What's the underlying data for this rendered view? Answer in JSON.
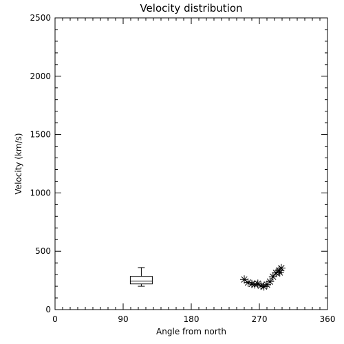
{
  "chart_data": {
    "type": "scatter",
    "title": "Velocity distribution",
    "xlabel": "Angle from north",
    "ylabel": "Velocity (km/s)",
    "xlim": [
      0,
      360
    ],
    "ylim": [
      0,
      2500
    ],
    "x_ticks": [
      0,
      90,
      180,
      270,
      360
    ],
    "y_ticks": [
      0,
      500,
      1000,
      1500,
      2000,
      2500
    ],
    "x_minor_step": 10,
    "y_minor_step": 100,
    "grid": false,
    "box": {
      "x": 114,
      "whisker_low": 200,
      "q1": 220,
      "median": 245,
      "q3": 285,
      "whisker_high": 360
    },
    "points": [
      {
        "x": 250,
        "y": 258
      },
      {
        "x": 255,
        "y": 232
      },
      {
        "x": 260,
        "y": 220
      },
      {
        "x": 264,
        "y": 216
      },
      {
        "x": 268,
        "y": 222
      },
      {
        "x": 272,
        "y": 205
      },
      {
        "x": 276,
        "y": 198
      },
      {
        "x": 280,
        "y": 214
      },
      {
        "x": 284,
        "y": 240
      },
      {
        "x": 288,
        "y": 282
      },
      {
        "x": 292,
        "y": 315
      },
      {
        "x": 296,
        "y": 335
      },
      {
        "x": 299,
        "y": 355
      },
      {
        "x": 297,
        "y": 318
      }
    ]
  }
}
